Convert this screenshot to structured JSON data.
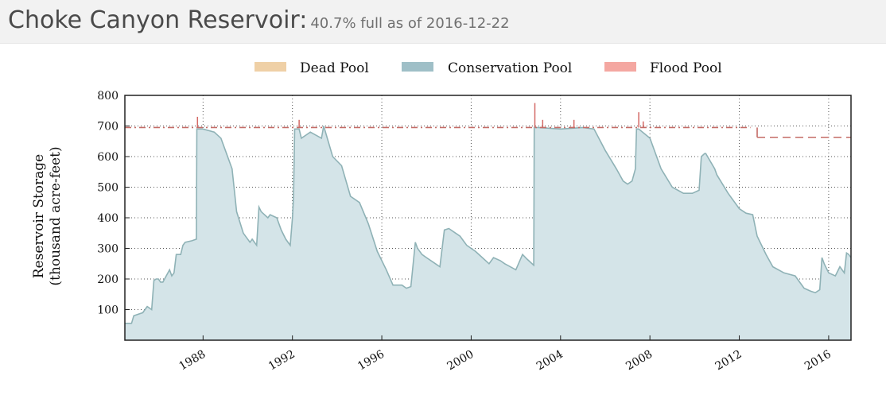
{
  "header": {
    "title": "Choke Canyon Reservoir:",
    "subtitle": "40.7% full as of 2016-12-22"
  },
  "legend": [
    {
      "label": "Dead Pool",
      "color": "#efd0a6"
    },
    {
      "label": "Conservation Pool",
      "color": "#9fbfc7"
    },
    {
      "label": "Flood Pool",
      "color": "#f4a7a1"
    }
  ],
  "chart_data": {
    "type": "area",
    "ylabel_line1": "Reservoir Storage",
    "ylabel_line2": "(thousand acre-feet)",
    "xlim": [
      1984.5,
      2017
    ],
    "ylim": [
      0,
      800
    ],
    "yticks": [
      100,
      200,
      300,
      400,
      500,
      600,
      700,
      800
    ],
    "xticks": [
      1988,
      1992,
      1996,
      2000,
      2004,
      2008,
      2012,
      2016
    ],
    "grid": true,
    "colors": {
      "fill": "#d4e4e8",
      "line": "#8fb2b6",
      "flood": "#d46a66",
      "capacity": "#c46b66"
    },
    "capacity_segments": [
      {
        "x": [
          1984.5,
          2012.5
        ],
        "y": 695
      },
      {
        "x": [
          2012.8,
          2017
        ],
        "y": 663
      }
    ],
    "series": [
      {
        "x": [
          1984.5,
          1984.8,
          1984.9,
          1985.3,
          1985.5,
          1985.7,
          1985.8,
          1985.9,
          1986.0,
          1986.05,
          1986.1,
          1986.2,
          1986.5,
          1986.6,
          1986.7,
          1986.8,
          1987.0,
          1987.1,
          1987.2,
          1987.5,
          1987.7,
          1987.72,
          1987.8,
          1988.0,
          1988.5,
          1988.8,
          1989.0,
          1989.3,
          1989.5,
          1989.8,
          1990.1,
          1990.2,
          1990.4,
          1990.5,
          1990.6,
          1990.9,
          1991.0,
          1991.3,
          1991.5,
          1991.7,
          1991.9,
          1992.0,
          1992.05,
          1992.1,
          1992.3,
          1992.4,
          1992.6,
          1992.8,
          1993.3,
          1993.4,
          1993.8,
          1994.2,
          1994.6,
          1995.0,
          1995.4,
          1995.8,
          1996.2,
          1996.5,
          1996.9,
          1997.1,
          1997.3,
          1997.5,
          1997.6,
          1997.8,
          1998.0,
          1998.4,
          1998.6,
          1998.8,
          1999.0,
          1999.1,
          1999.3,
          1999.5,
          1999.8,
          2000.2,
          2000.8,
          2001.0,
          2001.3,
          2001.5,
          2002.0,
          2002.3,
          2002.5,
          2002.8,
          2002.82,
          2003.0,
          2004.0,
          2005.0,
          2005.5,
          2006.0,
          2006.5,
          2006.8,
          2007.0,
          2007.2,
          2007.35,
          2007.4,
          2007.5,
          2008.0,
          2008.5,
          2009.0,
          2009.5,
          2009.9,
          2010.2,
          2010.3,
          2010.45,
          2010.5,
          2010.9,
          2011.0,
          2011.5,
          2012.0,
          2012.3,
          2012.6,
          2012.8,
          2013.2,
          2013.5,
          2014.0,
          2014.5,
          2014.9,
          2015.2,
          2015.4,
          2015.6,
          2015.7,
          2015.8,
          2016.0,
          2016.3,
          2016.5,
          2016.7,
          2016.8,
          2016.9,
          2017.0
        ],
        "y": [
          55,
          55,
          80,
          90,
          110,
          100,
          195,
          200,
          200,
          195,
          190,
          190,
          230,
          210,
          220,
          280,
          280,
          310,
          320,
          325,
          330,
          690,
          690,
          690,
          680,
          660,
          620,
          560,
          420,
          350,
          320,
          330,
          310,
          435,
          420,
          400,
          410,
          400,
          360,
          330,
          310,
          400,
          470,
          690,
          690,
          660,
          670,
          680,
          660,
          700,
          600,
          570,
          470,
          450,
          380,
          290,
          230,
          180,
          180,
          170,
          175,
          320,
          300,
          280,
          270,
          250,
          240,
          360,
          365,
          360,
          350,
          340,
          310,
          290,
          250,
          270,
          260,
          250,
          230,
          280,
          265,
          245,
          695,
          695,
          690,
          695,
          690,
          620,
          560,
          520,
          510,
          520,
          560,
          690,
          690,
          660,
          560,
          500,
          480,
          480,
          490,
          600,
          610,
          610,
          560,
          540,
          480,
          430,
          415,
          410,
          340,
          280,
          240,
          220,
          210,
          170,
          160,
          155,
          165,
          270,
          250,
          220,
          210,
          240,
          220,
          285,
          280,
          270
        ]
      }
    ]
  }
}
